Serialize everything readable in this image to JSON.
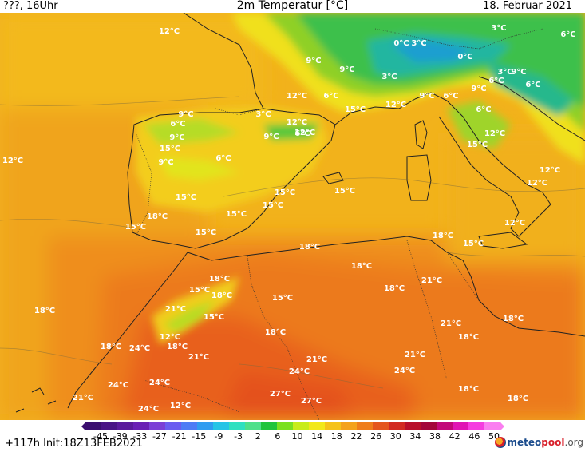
{
  "header": {
    "left": "???, 16Uhr",
    "title": "2m Temperatur [°C]",
    "date": "18. Februar 2021"
  },
  "footer": {
    "init": "+117h Init:18Z13FEB2021",
    "logo_main": "meteo",
    "logo_accent": "pool",
    "logo_suffix": ".org"
  },
  "colorbar": {
    "ticks": [
      "-45",
      "-39",
      "-33",
      "-27",
      "-21",
      "-15",
      "-9",
      "-3",
      "2",
      "6",
      "10",
      "14",
      "18",
      "22",
      "26",
      "30",
      "34",
      "38",
      "42",
      "46",
      "50"
    ],
    "colors": [
      "#3b0f70",
      "#4a1486",
      "#5b1a9c",
      "#6a1fb5",
      "#7b3fd6",
      "#6a5cf0",
      "#4d7cf5",
      "#2f9cf0",
      "#25c4e6",
      "#2ee0c0",
      "#4ee08a",
      "#1fc43c",
      "#7ae020",
      "#c8ec1a",
      "#f2e81a",
      "#f5c21a",
      "#f4a21c",
      "#ef7d1c",
      "#e4561e",
      "#d22a22",
      "#b80f2a",
      "#a3063a",
      "#c2087a",
      "#e014b4",
      "#f53ce0",
      "#fa7ef0"
    ]
  },
  "map": {
    "colors": {
      "sea": "#f2b21b",
      "sea_south": "#f4a91e",
      "iberia": "#f6b51f",
      "africa": "#ef8a1f",
      "sahara": "#ea6a1d",
      "hot": "#e55a1c",
      "alps_green": "#3fc24a",
      "alps_cyan": "#28c0a8",
      "lime": "#9ad424",
      "yellow": "#f0e01c",
      "coast": "#222222"
    },
    "labels": [
      {
        "t": "12°C"
      },
      {
        "t": "9°C"
      },
      {
        "t": "9°C"
      },
      {
        "t": "3°C"
      },
      {
        "t": "0°C"
      },
      {
        "t": "3°C"
      },
      {
        "t": "6°C"
      },
      {
        "t": "0°C"
      },
      {
        "t": "3°C"
      },
      {
        "t": "9°C"
      },
      {
        "t": "12°C"
      },
      {
        "t": "6°C"
      },
      {
        "t": "15°C"
      },
      {
        "t": "12°C"
      },
      {
        "t": "9°C"
      },
      {
        "t": "6°C"
      },
      {
        "t": "3°C"
      },
      {
        "t": "9°C"
      },
      {
        "t": "6°C"
      },
      {
        "t": "6°C"
      },
      {
        "t": "6°C"
      },
      {
        "t": "9°C"
      },
      {
        "t": "6°C"
      },
      {
        "t": "3°C"
      },
      {
        "t": "12°C"
      },
      {
        "t": "12°C"
      },
      {
        "t": "9°C"
      },
      {
        "t": "15°C"
      },
      {
        "t": "6°C"
      },
      {
        "t": "9°C"
      },
      {
        "t": "15°C"
      },
      {
        "t": "12°C"
      },
      {
        "t": "15°C"
      },
      {
        "t": "12°C"
      },
      {
        "t": "12°C"
      },
      {
        "t": "15°C"
      },
      {
        "t": "15°C"
      },
      {
        "t": "15°C"
      },
      {
        "t": "18°C"
      },
      {
        "t": "15°C"
      },
      {
        "t": "15°C"
      },
      {
        "t": "18°C"
      },
      {
        "t": "12°C"
      },
      {
        "t": "18°C"
      },
      {
        "t": "15°C"
      },
      {
        "t": "18°C"
      },
      {
        "t": "18°C"
      },
      {
        "t": "21°C"
      },
      {
        "t": "18°C"
      },
      {
        "t": "15°C"
      },
      {
        "t": "18°C"
      },
      {
        "t": "15°C"
      },
      {
        "t": "18°C"
      },
      {
        "t": "21°C"
      },
      {
        "t": "21°C"
      },
      {
        "t": "15°C"
      },
      {
        "t": "18°C"
      },
      {
        "t": "12°C"
      },
      {
        "t": "18°C"
      },
      {
        "t": "18°C"
      },
      {
        "t": "18°C"
      },
      {
        "t": "21°C"
      },
      {
        "t": "21°C"
      },
      {
        "t": "18°C"
      },
      {
        "t": "24°C"
      },
      {
        "t": "24°C"
      },
      {
        "t": "24°C"
      },
      {
        "t": "24°C"
      },
      {
        "t": "21°C"
      },
      {
        "t": "24°C"
      },
      {
        "t": "27°C"
      },
      {
        "t": "27°C"
      },
      {
        "t": "18°C"
      },
      {
        "t": "18°C"
      },
      {
        "t": "24°C"
      },
      {
        "t": "21°C"
      },
      {
        "t": "12°C"
      },
      {
        "t": "12°C"
      },
      {
        "t": "9°C"
      },
      {
        "t": "6°C"
      },
      {
        "t": "15°C"
      }
    ]
  }
}
